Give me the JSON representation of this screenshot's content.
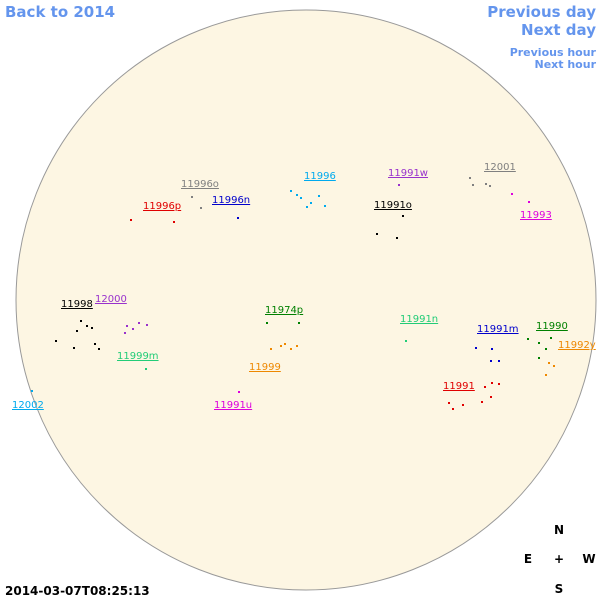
{
  "nav": {
    "back": "Back to 2014",
    "previous_day": "Previous day",
    "next_day": "Next day",
    "previous_hour": "Previous hour",
    "next_hour": "Next hour"
  },
  "timestamp": "2014-03-07T08:25:13",
  "compass": {
    "north": "N",
    "east": "E",
    "center": "+",
    "west": "W",
    "south": "S"
  },
  "regions": [
    {
      "label": "11996o",
      "color": "#808080"
    },
    {
      "label": "11996p",
      "color": "#e00000"
    },
    {
      "label": "11996n",
      "color": "#0000cc"
    },
    {
      "label": "11996",
      "color": "#00aaee"
    },
    {
      "label": "11991w",
      "color": "#9932cc"
    },
    {
      "label": "12001",
      "color": "#808080"
    },
    {
      "label": "11991o",
      "color": "#000000"
    },
    {
      "label": "11993",
      "color": "#dd00dd"
    },
    {
      "label": "11998",
      "color": "#000000"
    },
    {
      "label": "12000",
      "color": "#9932cc"
    },
    {
      "label": "11974p",
      "color": "#008000"
    },
    {
      "label": "11991n",
      "color": "#22cc77"
    },
    {
      "label": "11991m",
      "color": "#0000cc"
    },
    {
      "label": "11990",
      "color": "#008000"
    },
    {
      "label": "11992y",
      "color": "#ee8800"
    },
    {
      "label": "11999",
      "color": "#ee8800"
    },
    {
      "label": "11999m",
      "color": "#22cc77"
    },
    {
      "label": "11991",
      "color": "#e00000"
    },
    {
      "label": "12002",
      "color": "#00aaee"
    },
    {
      "label": "11991u",
      "color": "#dd00dd"
    }
  ]
}
